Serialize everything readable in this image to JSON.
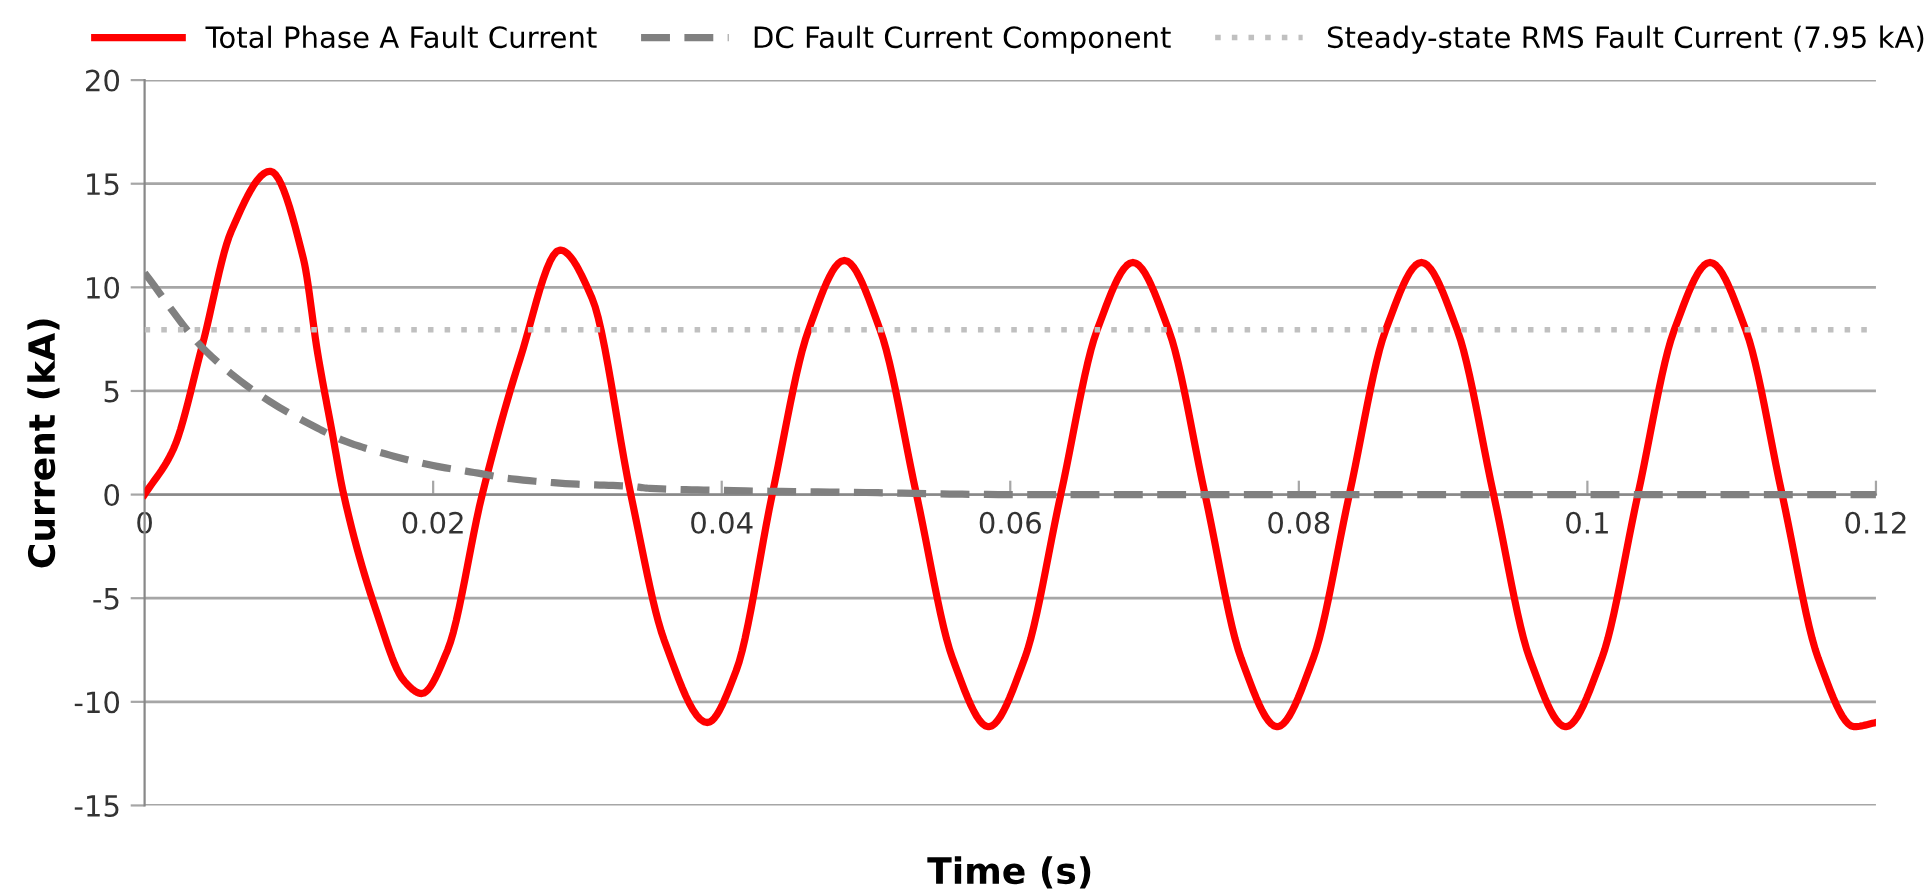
{
  "chart_data": {
    "type": "line",
    "xlabel": "Time (s)",
    "ylabel": "Current (kA)",
    "xlim": [
      0,
      0.12
    ],
    "xticks": [
      0,
      0.02,
      0.04,
      0.06,
      0.08,
      0.1,
      0.12
    ],
    "ylim": [
      -15,
      20
    ],
    "yticks": [
      -15,
      -10,
      -5,
      0,
      5,
      10,
      15,
      20
    ],
    "grid": "y",
    "legend": "top",
    "marker": "none",
    "series": [
      {
        "name": "Total Phase A Fault Current",
        "color": "#ff0000",
        "line_style": "solid",
        "x": [
          0,
          0.002,
          0.004,
          0.006,
          0.0087,
          0.011,
          0.012,
          0.013,
          0.0138,
          0.016,
          0.018,
          0.0192,
          0.021,
          0.0234,
          0.026,
          0.0288,
          0.031,
          0.0337,
          0.036,
          0.039,
          0.041,
          0.0435,
          0.046,
          0.0485,
          0.051,
          0.0535,
          0.056,
          0.0585,
          0.061,
          0.0635,
          0.066,
          0.0685,
          0.071,
          0.0735,
          0.076,
          0.0785,
          0.081,
          0.0835,
          0.086,
          0.0885,
          0.091,
          0.0935,
          0.096,
          0.0985,
          0.101,
          0.1035,
          0.106,
          0.1085,
          0.111,
          0.1135,
          0.116,
          0.1185,
          0.12
        ],
        "values": [
          0,
          2.2,
          7.2,
          12.7,
          15.6,
          11.4,
          6.8,
          3.0,
          0,
          -5.5,
          -9.0,
          -9.6,
          -7.5,
          0,
          6.5,
          11.8,
          9.5,
          0,
          -7.0,
          -11.0,
          -8.5,
          0,
          7.9,
          11.3,
          7.9,
          0,
          -7.9,
          -11.2,
          -7.9,
          0,
          7.9,
          11.2,
          7.9,
          0,
          -7.9,
          -11.2,
          -7.9,
          0,
          7.9,
          11.2,
          7.9,
          0,
          -7.9,
          -11.2,
          -7.9,
          0,
          7.9,
          11.2,
          7.9,
          0,
          -7.9,
          -11.2,
          -11.0
        ]
      },
      {
        "name": "DC Fault Current Component",
        "color": "#808080",
        "line_style": "dashed",
        "x": [
          0,
          0.004,
          0.008,
          0.012,
          0.0138,
          0.016,
          0.02,
          0.0234,
          0.025,
          0.03,
          0.0337,
          0.035,
          0.04,
          0.05,
          0.06,
          0.08,
          0.12
        ],
        "values": [
          10.7,
          7.1,
          4.8,
          3.2,
          2.6,
          2.1,
          1.4,
          1.0,
          0.8,
          0.5,
          0.4,
          0.3,
          0.2,
          0.1,
          0,
          0,
          0
        ]
      },
      {
        "name": "Steady-state RMS Fault Current (7.95 kA)",
        "color": "#c0c0c0",
        "line_style": "dotted",
        "x": [
          0,
          0.12
        ],
        "values": [
          7.95,
          7.95
        ]
      }
    ]
  }
}
